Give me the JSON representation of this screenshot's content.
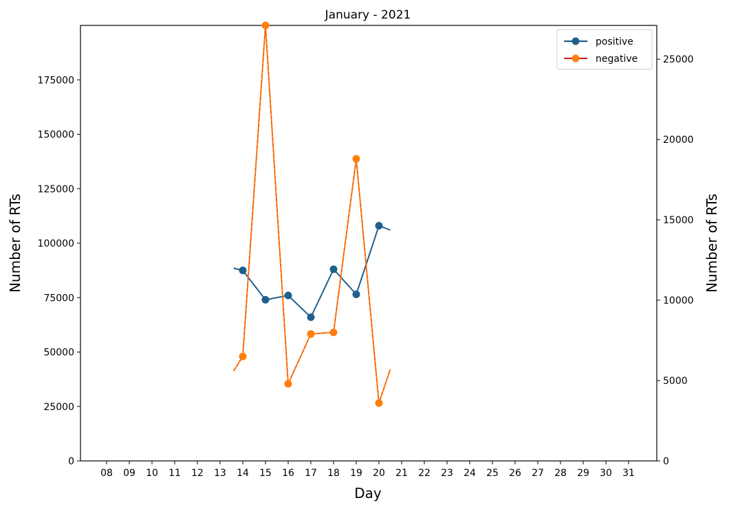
{
  "chart_data": {
    "type": "line",
    "title": "January - 2021",
    "xlabel": "Day",
    "ylabel_left": "Number of RTs",
    "ylabel_right": "Number of RTs",
    "x_ticks": [
      "08",
      "09",
      "10",
      "11",
      "12",
      "13",
      "14",
      "15",
      "16",
      "17",
      "18",
      "19",
      "20",
      "21",
      "22",
      "23",
      "24",
      "25",
      "26",
      "27",
      "28",
      "29",
      "30",
      "31"
    ],
    "ylim_left": [
      0,
      200000
    ],
    "ylim_right": [
      0,
      27100
    ],
    "yticks_left": [
      0,
      25000,
      50000,
      75000,
      100000,
      125000,
      150000,
      175000
    ],
    "yticks_right": [
      0,
      5000,
      10000,
      15000,
      20000,
      25000
    ],
    "legend_position": "upper right",
    "grid": false,
    "series": [
      {
        "name": "positive",
        "axis": "left",
        "color": "#1f5f8b",
        "x": [
          "14",
          "15",
          "16",
          "17",
          "18",
          "19",
          "20"
        ],
        "values": [
          87500,
          74000,
          76000,
          66000,
          88000,
          76500,
          108000
        ],
        "lead_in": [
          13.6,
          88500
        ],
        "lead_out": [
          20.5,
          106000
        ]
      },
      {
        "name": "negative",
        "axis": "right",
        "color": "#ff7f0e",
        "x": [
          "14",
          "15",
          "16",
          "17",
          "18",
          "19",
          "20"
        ],
        "values": [
          6500,
          27100,
          4800,
          7900,
          8000,
          18800,
          3600
        ],
        "lead_in": [
          13.6,
          5600
        ],
        "lead_out": [
          20.5,
          5700
        ]
      }
    ],
    "legend_marker_colors": {
      "positive_line": "#1f5f8b",
      "positive_marker": "#1f5f8b",
      "negative_line": "#d62728",
      "negative_marker": "#ff7f0e"
    }
  }
}
